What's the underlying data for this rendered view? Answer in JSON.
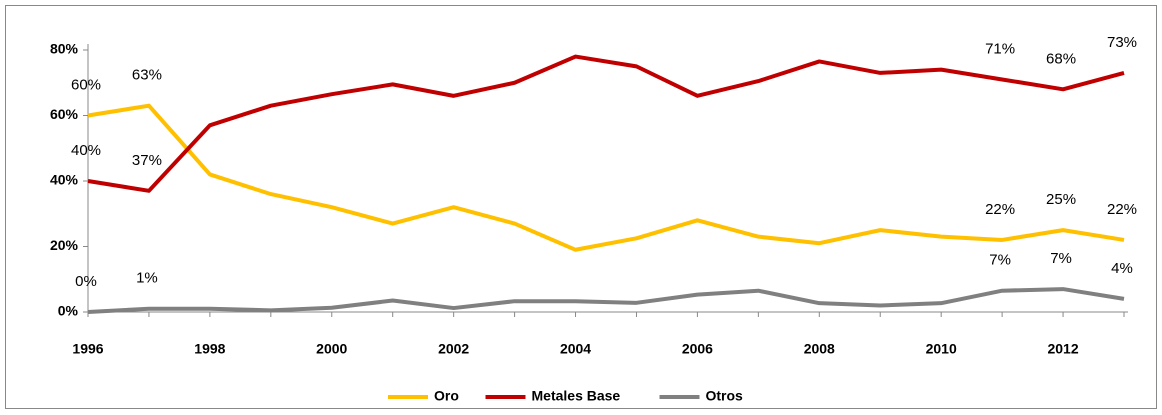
{
  "chart_data": {
    "type": "line",
    "x": [
      1996,
      1997,
      1998,
      1999,
      2000,
      2001,
      2002,
      2003,
      2004,
      2005,
      2006,
      2007,
      2008,
      2009,
      2010,
      2011,
      2012,
      2013
    ],
    "xlim": [
      1996,
      2013
    ],
    "xticks": [
      1996,
      1998,
      2000,
      2002,
      2004,
      2006,
      2008,
      2010,
      2012
    ],
    "ylim": [
      0,
      80
    ],
    "yticks": [
      {
        "value": 0,
        "label": "0%"
      },
      {
        "value": 20,
        "label": "20%"
      },
      {
        "value": 40,
        "label": "40%"
      },
      {
        "value": 60,
        "label": "60%"
      },
      {
        "value": 80,
        "label": "80%"
      }
    ],
    "grid": false,
    "legend": "bottom",
    "series": [
      {
        "name": "Oro",
        "color": "#ffc000",
        "values": [
          60,
          63,
          42,
          36,
          32,
          27,
          32,
          27,
          19,
          22.5,
          28,
          23,
          21,
          25,
          23,
          22,
          25,
          22
        ],
        "value_labels": [
          "60%",
          "63%",
          null,
          null,
          null,
          null,
          null,
          null,
          null,
          null,
          null,
          null,
          null,
          null,
          null,
          "22%",
          "25%",
          "22%"
        ]
      },
      {
        "name": "Metales Base",
        "color": "#c00000",
        "values": [
          40,
          37,
          57,
          63,
          66.5,
          69.5,
          66,
          70,
          78,
          75,
          66,
          70.5,
          76.5,
          73,
          74,
          71,
          68,
          73
        ],
        "value_labels": [
          "40%",
          "37%",
          null,
          null,
          null,
          null,
          null,
          null,
          null,
          null,
          null,
          null,
          null,
          null,
          null,
          "71%",
          "68%",
          "73%"
        ]
      },
      {
        "name": "Otros",
        "color": "#808080",
        "values": [
          0,
          1,
          1,
          0.5,
          1.3,
          3.5,
          1.2,
          3.3,
          3.3,
          2.8,
          5.3,
          6.5,
          2.7,
          2,
          2.7,
          6.5,
          7,
          4
        ],
        "value_labels": [
          "0%",
          "1%",
          null,
          null,
          null,
          null,
          null,
          null,
          null,
          null,
          null,
          null,
          null,
          null,
          null,
          "7%",
          "7%",
          "4%"
        ]
      }
    ]
  }
}
